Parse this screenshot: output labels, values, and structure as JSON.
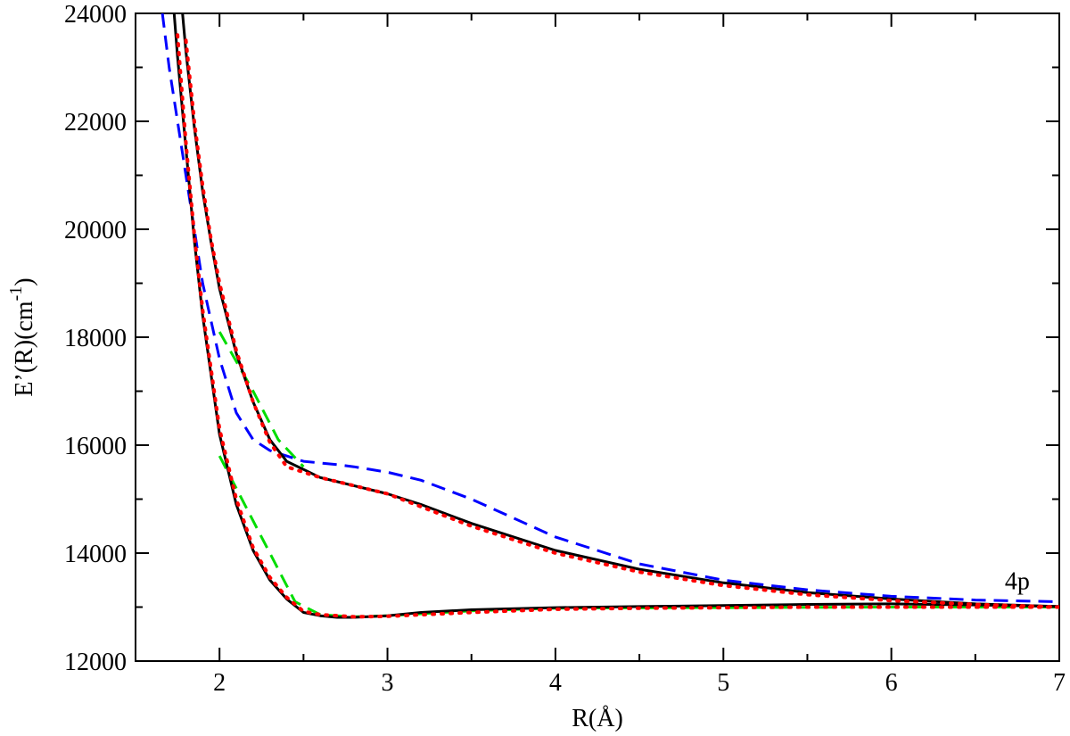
{
  "chart_data": {
    "type": "line",
    "xlabel": "R(Å)",
    "ylabel_main": "E’(R)(cm",
    "ylabel_sup": "-1",
    "ylabel_close": ")",
    "xlim": [
      1.5,
      7
    ],
    "ylim": [
      12000,
      24000
    ],
    "xticks": [
      2,
      3,
      4,
      5,
      6,
      7
    ],
    "yticks": [
      12000,
      14000,
      16000,
      18000,
      20000,
      22000,
      24000
    ],
    "grid": false,
    "annotations": [
      {
        "text": "4p",
        "x": 6.75,
        "y": 13500
      }
    ],
    "series": [
      {
        "color": "#000000",
        "style": "solid",
        "x": [
          1.73,
          1.75,
          1.8,
          1.85,
          1.9,
          2.0,
          2.1,
          2.2,
          2.3,
          2.4,
          2.5,
          2.6,
          2.7,
          2.8,
          3.0,
          3.2,
          3.5,
          4.0,
          4.5,
          5.0,
          5.5,
          6.0,
          6.5,
          7.0
        ],
        "y": [
          24000,
          23200,
          21500,
          19800,
          18400,
          16200,
          14900,
          14050,
          13500,
          13150,
          12900,
          12840,
          12810,
          12810,
          12840,
          12900,
          12950,
          12990,
          13010,
          13030,
          13050,
          13060,
          13040,
          13010
        ]
      },
      {
        "color": "#ff0000",
        "style": "dotted",
        "x": [
          1.75,
          1.8,
          1.85,
          1.9,
          2.0,
          2.1,
          2.2,
          2.3,
          2.4,
          2.5,
          2.6,
          2.7,
          2.8,
          3.0,
          3.5,
          4.0,
          4.5,
          5.0,
          5.5,
          6.0,
          6.5,
          7.0
        ],
        "y": [
          23600,
          21600,
          19900,
          18500,
          16300,
          15000,
          14100,
          13550,
          13180,
          12920,
          12860,
          12840,
          12820,
          12830,
          12900,
          12960,
          12980,
          12990,
          13000,
          13000,
          13000,
          13000
        ]
      },
      {
        "color": "#00dd00",
        "style": "dashed",
        "x": [
          2.0,
          2.45,
          2.6,
          2.8,
          3.0,
          3.5,
          4.0,
          5.0,
          6.0,
          7.0
        ],
        "y": [
          15800,
          13100,
          12860,
          12820,
          12840,
          12930,
          12980,
          12990,
          13000,
          13000
        ]
      },
      {
        "color": "#000000",
        "style": "solid",
        "x": [
          1.78,
          1.8,
          1.85,
          1.9,
          1.95,
          2.0,
          2.1,
          2.2,
          2.3,
          2.4,
          2.5,
          2.6,
          2.8,
          3.0,
          3.2,
          3.5,
          4.0,
          4.5,
          5.0,
          5.5,
          6.0,
          6.5,
          7.0
        ],
        "y": [
          24000,
          23300,
          21900,
          20700,
          19750,
          18900,
          17700,
          16800,
          16100,
          15700,
          15550,
          15400,
          15250,
          15100,
          14900,
          14550,
          14050,
          13700,
          13450,
          13270,
          13150,
          13060,
          13010
        ]
      },
      {
        "color": "#ff0000",
        "style": "dotted",
        "x": [
          1.8,
          1.85,
          1.9,
          1.95,
          2.0,
          2.1,
          2.2,
          2.3,
          2.4,
          2.5,
          2.6,
          2.8,
          3.0,
          3.5,
          4.0,
          4.5,
          5.0,
          5.5,
          6.0,
          6.5,
          7.0
        ],
        "y": [
          23500,
          22000,
          20800,
          19800,
          19000,
          17750,
          16800,
          16050,
          15600,
          15500,
          15400,
          15250,
          15100,
          14500,
          14000,
          13650,
          13400,
          13230,
          13120,
          13050,
          13000
        ]
      },
      {
        "color": "#00dd00",
        "style": "dashed",
        "x": [
          2.0,
          2.2,
          2.35,
          2.5
        ],
        "y": [
          18100,
          17000,
          16100,
          15600
        ]
      },
      {
        "color": "#0000ff",
        "style": "dashed",
        "x": [
          1.66,
          1.7,
          1.75,
          1.8,
          1.85,
          1.9,
          2.0,
          2.1,
          2.2,
          2.3,
          2.4,
          2.5,
          2.7,
          2.8,
          3.0,
          3.2,
          3.5,
          4.0,
          4.5,
          5.0,
          5.5,
          6.0,
          6.5,
          7.0
        ],
        "y": [
          24000,
          23000,
          22000,
          21000,
          20000,
          19000,
          17600,
          16600,
          16100,
          15900,
          15800,
          15700,
          15640,
          15600,
          15500,
          15350,
          15000,
          14300,
          13800,
          13500,
          13320,
          13200,
          13130,
          13100
        ]
      }
    ]
  }
}
